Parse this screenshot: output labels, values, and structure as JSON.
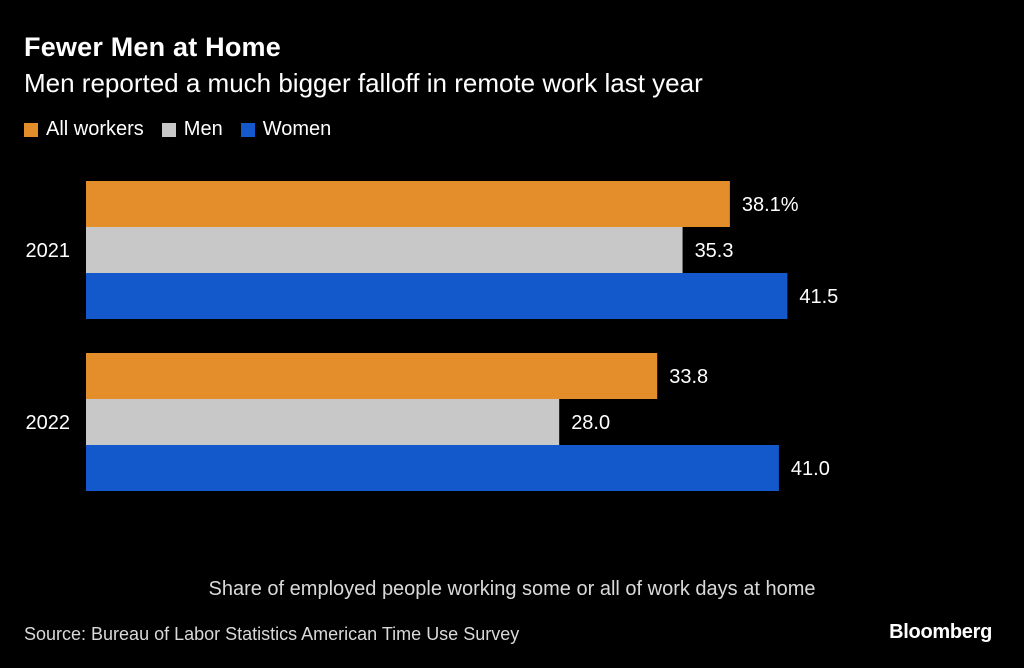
{
  "title": "Fewer Men at Home",
  "subtitle": "Men reported a much bigger falloff in remote work last year",
  "legend": {
    "items": [
      {
        "label": "All workers",
        "color": "#e38d2b"
      },
      {
        "label": "Men",
        "color": "#c8c8c8"
      },
      {
        "label": "Women",
        "color": "#1359cc"
      }
    ]
  },
  "footnote": "Share of employed people working some or all of work days at home",
  "source": "Source: Bureau of Labor Statistics American Time Use Survey",
  "brand": "Bloomberg",
  "chart_data": {
    "type": "bar",
    "orientation": "horizontal",
    "categories": [
      "2021",
      "2022"
    ],
    "series": [
      {
        "name": "All workers",
        "color": "#e38d2b",
        "values": [
          38.1,
          33.8
        ],
        "labels": [
          "38.1%",
          "33.8"
        ]
      },
      {
        "name": "Men",
        "color": "#c8c8c8",
        "values": [
          35.3,
          28.0
        ],
        "labels": [
          "35.3",
          "28.0"
        ]
      },
      {
        "name": "Women",
        "color": "#1359cc",
        "values": [
          41.5,
          41.0
        ],
        "labels": [
          "41.5",
          "41.0"
        ]
      }
    ],
    "title": "Fewer Men at Home",
    "subtitle": "Men reported a much bigger falloff in remote work last year",
    "xlabel": "Share of employed people working some or all of work days at home",
    "ylabel": "",
    "xlim": [
      0,
      41.5
    ],
    "grid": false,
    "legend_position": "top-left"
  }
}
